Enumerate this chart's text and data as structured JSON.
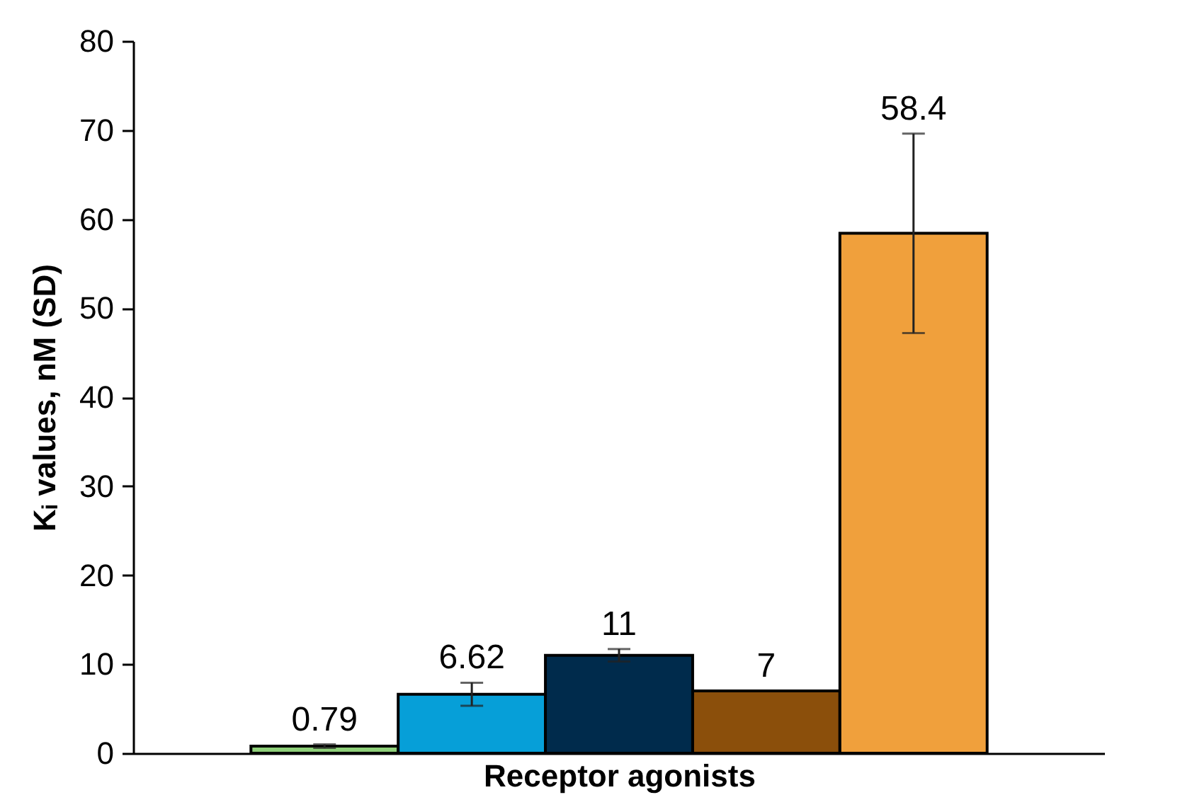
{
  "chart_data": {
    "type": "bar",
    "xlabel": "Receptor agonists",
    "ylabel": "Kᵢ values, nM (SD)",
    "categories": [
      null,
      null,
      null,
      null,
      null
    ],
    "values": [
      0.79,
      6.62,
      11,
      7,
      58.4
    ],
    "errors": [
      0.2,
      1.3,
      0.7,
      null,
      11.2
    ],
    "colors": [
      "#8fd07a",
      "#069fd8",
      "#002b4c",
      "#8b4f0b",
      "#f0a03c"
    ],
    "ylim": [
      0,
      80
    ],
    "yticks": [
      0,
      10,
      20,
      30,
      40,
      50,
      60,
      70,
      80
    ],
    "data_labels": true,
    "grid": false,
    "legend": false
  }
}
